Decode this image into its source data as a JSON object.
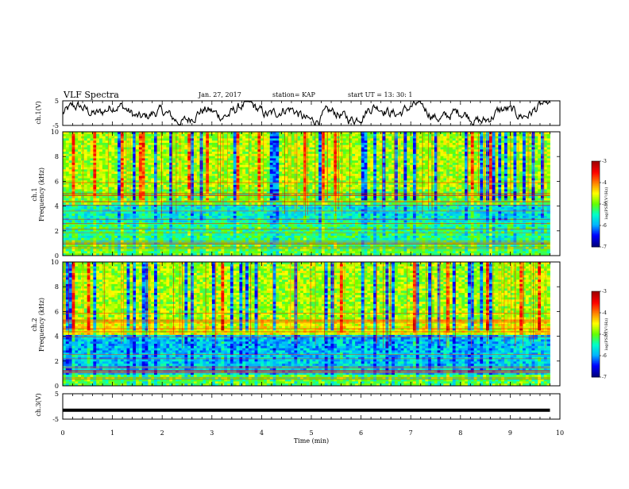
{
  "chart_data": {
    "type": "heatmap",
    "header": {
      "title": "VLF Spectra",
      "date": "Jan. 27, 2017",
      "station": "station= KAP",
      "start": "start  UT =   13: 30: 1"
    },
    "x_axis": {
      "label": "Time (min)",
      "range": [
        0,
        10
      ],
      "ticks": [
        "0",
        "1",
        "2",
        "3",
        "4",
        "5",
        "6",
        "7",
        "8",
        "9",
        "10"
      ],
      "data_end": 9.8
    },
    "panels": [
      {
        "name": "ch1-waveform",
        "type": "line",
        "ylabel": "ch.1(V)",
        "ylim": [
          -5,
          5
        ],
        "yticks": [
          "5",
          "-5"
        ]
      },
      {
        "name": "ch1-spectrogram",
        "type": "heatmap",
        "ylabel_top": "ch.1",
        "ylabel": "Frequency (kHz)",
        "ylim": [
          0,
          10
        ],
        "yticks": [
          "0",
          "2",
          "4",
          "6",
          "8",
          "10"
        ],
        "colorbar": {
          "label": "log(PSD)(V²/Hz)",
          "range": [
            -7,
            -3
          ],
          "ticks": [
            "-3",
            "-4",
            "-5",
            "-6",
            "-7"
          ]
        }
      },
      {
        "name": "ch2-spectrogram",
        "type": "heatmap",
        "ylabel_top": "ch.2",
        "ylabel": "Frequency (kHz)",
        "ylim": [
          0,
          10
        ],
        "yticks": [
          "0",
          "2",
          "4",
          "6",
          "8",
          "10"
        ],
        "colorbar": {
          "label": "log(PSD)(V²/Hz)",
          "range": [
            -7,
            -3
          ],
          "ticks": [
            "-3",
            "-4",
            "-5",
            "-6",
            "-7"
          ]
        }
      },
      {
        "name": "ch3-waveform",
        "type": "line",
        "ylabel": "ch.3(V)",
        "ylim": [
          -5,
          5
        ],
        "yticks": [
          "5",
          "-5"
        ],
        "constant_value": -1.5
      }
    ]
  },
  "colors": {
    "colormap": [
      "#000080",
      "#0000ff",
      "#00b4ff",
      "#00ffc8",
      "#64ff00",
      "#ffff00",
      "#ff8000",
      "#ff0000",
      "#a00000"
    ],
    "line": "#000000"
  }
}
